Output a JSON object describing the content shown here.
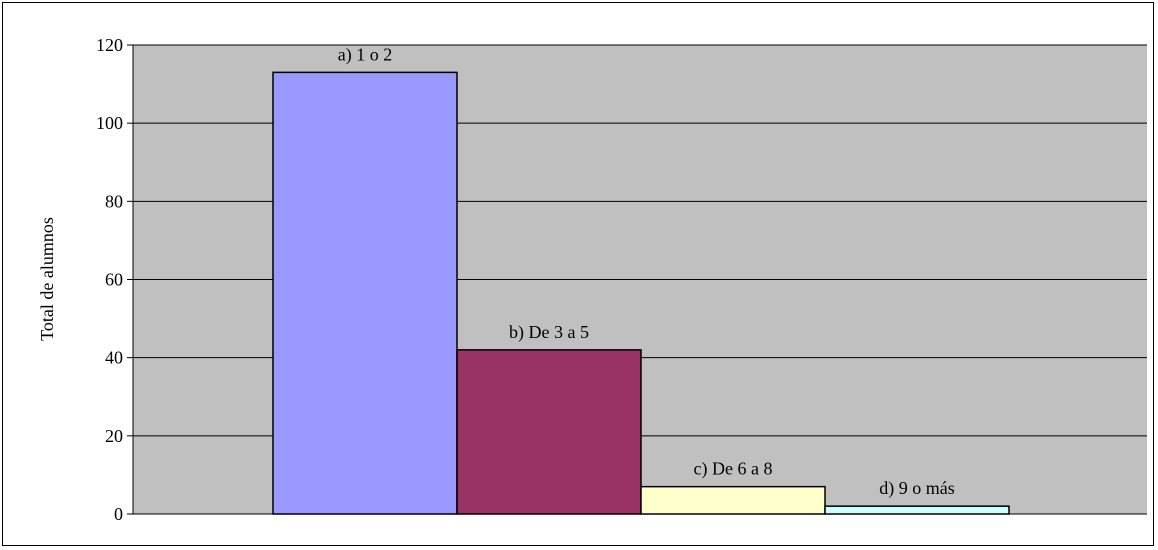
{
  "chart_data": {
    "type": "bar",
    "title": "",
    "xlabel": "",
    "ylabel": "Total de alumnos",
    "ylim": [
      0,
      120
    ],
    "yticks": [
      0,
      20,
      40,
      60,
      80,
      100,
      120
    ],
    "grid": true,
    "plot_background": "#c0c0c0",
    "categories": [
      "a) 1 o 2",
      "b) De 3 a 5",
      "c) De 6 a 8",
      "d) 9 o más"
    ],
    "values": [
      113,
      42,
      7,
      2
    ],
    "colors": [
      "#9999ff",
      "#993366",
      "#ffffcc",
      "#ccffff"
    ]
  }
}
